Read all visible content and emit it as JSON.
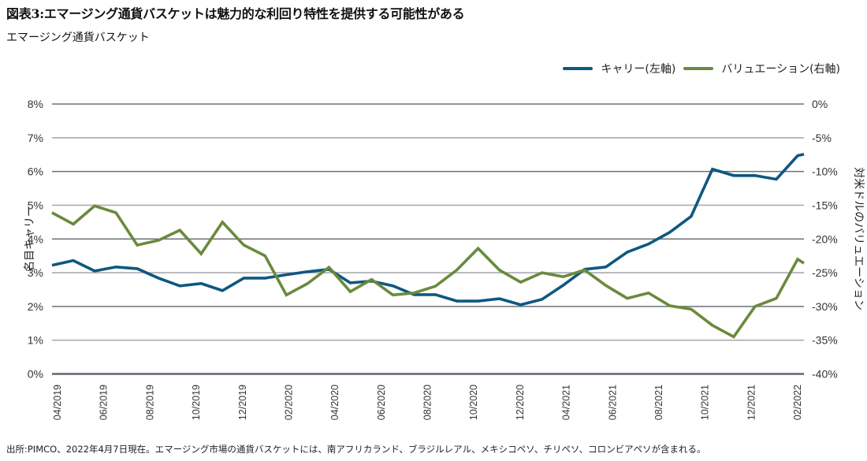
{
  "title": "図表3:エマージング通貨バスケットは魅力的な利回り特性を提供する可能性がある",
  "subtitle": "エマージング通貨バスケット",
  "footnote": "出所:PIMCO、2022年4月7日現在。エマージング市場の通貨バスケットには、南アフリカランド、ブラジルレアル、メキシコペソ、チリペソ、コロンビアペソが含まれる。",
  "legend": [
    {
      "label": "キャリー(左軸)",
      "color": "#0f5780"
    },
    {
      "label": "バリュエーション(右軸)",
      "color": "#6a8a3c"
    }
  ],
  "chart_data": {
    "type": "line",
    "title": "エマージング通貨バスケット",
    "xlabel": "",
    "ylabel": "名目キャリー",
    "y2label": "対米ドルのバリュエーション",
    "ylim": [
      0,
      8
    ],
    "y2lim": [
      -40,
      0
    ],
    "yticks": [
      "0%",
      "1%",
      "2%",
      "3%",
      "4%",
      "5%",
      "6%",
      "7%",
      "8%"
    ],
    "y2ticks": [
      "-40%",
      "-35%",
      "-30%",
      "-25%",
      "-20%",
      "-15%",
      "-10%",
      "-5%",
      "0%"
    ],
    "xtick_labels": [
      "04/2019",
      "06/2019",
      "08/2019",
      "10/2019",
      "12/2019",
      "02/2020",
      "04/2020",
      "06/2020",
      "08/2020",
      "10/2020",
      "12/2020",
      "04/2021",
      "06/2021",
      "08/2021",
      "10/2021",
      "12/2021",
      "02/2022"
    ],
    "grid": true,
    "legend_position": "top-right",
    "series": [
      {
        "name": "キャリー(左軸)",
        "axis": "left",
        "color": "#0f5780",
        "unit": "%",
        "values": [
          3.22,
          3.36,
          3.05,
          3.17,
          3.12,
          2.84,
          2.61,
          2.68,
          2.47,
          2.84,
          2.84,
          2.94,
          3.03,
          3.1,
          2.7,
          2.75,
          2.61,
          2.35,
          2.35,
          2.16,
          2.16,
          2.23,
          2.05,
          2.21,
          2.63,
          3.1,
          3.17,
          3.61,
          3.85,
          4.2,
          4.67,
          6.07,
          5.88,
          5.88,
          5.77,
          6.47,
          6.51
        ]
      },
      {
        "name": "バリュエーション(右軸)",
        "axis": "right",
        "color": "#6a8a3c",
        "unit": "%",
        "values": [
          -16.1,
          -17.8,
          -15.1,
          -16.1,
          -20.9,
          -20.2,
          -18.7,
          -22.2,
          -17.5,
          -20.9,
          -22.5,
          -28.3,
          -26.6,
          -24.2,
          -27.8,
          -26.0,
          -28.3,
          -28.0,
          -27.0,
          -24.6,
          -21.4,
          -24.6,
          -26.4,
          -25.0,
          -25.6,
          -24.6,
          -26.9,
          -28.8,
          -28.0,
          -29.9,
          -30.4,
          -32.8,
          -34.5,
          -30.0,
          -28.8,
          -23.0,
          -23.6
        ]
      }
    ]
  }
}
